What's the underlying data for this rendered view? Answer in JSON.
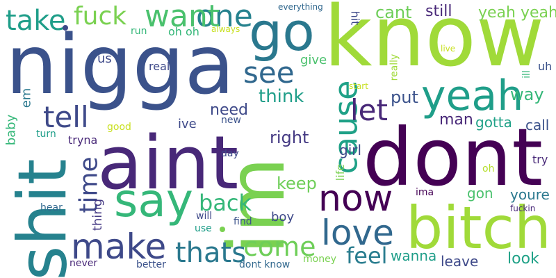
{
  "word_cloud": {
    "words": [
      {
        "text": "nigga",
        "color": "#3b528b"
      },
      {
        "text": "know",
        "color": "#a0da39"
      },
      {
        "text": "dont",
        "color": "#440154"
      },
      {
        "text": "aint",
        "color": "#482878"
      },
      {
        "text": "im",
        "color": "#7ad151"
      },
      {
        "text": "shit",
        "color": "#26828e"
      },
      {
        "text": "bitch",
        "color": "#a0da39"
      },
      {
        "text": "go",
        "color": "#2a788e"
      },
      {
        "text": "say",
        "color": "#35b779"
      },
      {
        "text": "yeah",
        "color": "#1f9e89"
      },
      {
        "text": "make",
        "color": "#3e4989"
      },
      {
        "text": "love",
        "color": "#31688e"
      },
      {
        "text": "now",
        "color": "#440154"
      },
      {
        "text": "cause",
        "color": "#1fa187"
      },
      {
        "text": "one",
        "color": "#26828e"
      },
      {
        "text": "want",
        "color": "#4ac16d"
      },
      {
        "text": "see",
        "color": "#31688e"
      },
      {
        "text": "tell",
        "color": "#3e4989"
      },
      {
        "text": "let",
        "color": "#482878"
      },
      {
        "text": "thats",
        "color": "#2a788e"
      },
      {
        "text": "come",
        "color": "#6ece58"
      },
      {
        "text": "time",
        "color": "#3e4989"
      },
      {
        "text": "take",
        "color": "#1f9e89"
      },
      {
        "text": "fuck",
        "color": "#7ad151"
      },
      {
        "text": "back",
        "color": "#35b779"
      },
      {
        "text": "feel",
        "color": "#287c8e"
      },
      {
        "text": "yeah yeah",
        "color": "#7ad151"
      },
      {
        "text": "think",
        "color": "#1f9e89"
      },
      {
        "text": "need",
        "color": "#3e4989"
      },
      {
        "text": "cant",
        "color": "#6ece58"
      },
      {
        "text": "still",
        "color": "#482878"
      },
      {
        "text": "right",
        "color": "#443983"
      },
      {
        "text": "put",
        "color": "#3b528b"
      },
      {
        "text": "way",
        "color": "#35b779"
      },
      {
        "text": "man",
        "color": "#482878"
      },
      {
        "text": "gotta",
        "color": "#1fa187"
      },
      {
        "text": "girl",
        "color": "#3e4989"
      },
      {
        "text": "keep",
        "color": "#6ece58"
      },
      {
        "text": "gon",
        "color": "#4ac16d"
      },
      {
        "text": "youre",
        "color": "#2a788e"
      },
      {
        "text": "look",
        "color": "#1fa187"
      },
      {
        "text": "wanna",
        "color": "#1f9e89"
      },
      {
        "text": "leave",
        "color": "#3e4989"
      },
      {
        "text": "call",
        "color": "#3b528b"
      },
      {
        "text": "try",
        "color": "#482878"
      },
      {
        "text": "boy",
        "color": "#3e4989"
      },
      {
        "text": "thing",
        "color": "#443983"
      },
      {
        "text": "ive",
        "color": "#3e4989"
      },
      {
        "text": "tryna",
        "color": "#482878"
      },
      {
        "text": "baby",
        "color": "#35b779"
      },
      {
        "text": "em",
        "color": "#2a788e"
      },
      {
        "text": "us",
        "color": "#3e4989"
      },
      {
        "text": "real",
        "color": "#3e4989"
      },
      {
        "text": "give",
        "color": "#4ac16d"
      },
      {
        "text": "really",
        "color": "#a0da39"
      },
      {
        "text": "hit",
        "color": "#3e4989"
      },
      {
        "text": "uh",
        "color": "#3b528b"
      },
      {
        "text": "ill",
        "color": "#35b779"
      },
      {
        "text": "life",
        "color": "#7ad151"
      },
      {
        "text": "oh",
        "color": "#b5de2b"
      },
      {
        "text": "turn",
        "color": "#1f9e89"
      },
      {
        "text": "hear",
        "color": "#31688e"
      },
      {
        "text": "will",
        "color": "#3e4989"
      },
      {
        "text": "use",
        "color": "#1f9e89"
      },
      {
        "text": "find",
        "color": "#3b528b"
      },
      {
        "text": "day",
        "color": "#3e4989"
      },
      {
        "text": "new",
        "color": "#3b528b"
      },
      {
        "text": "good",
        "color": "#c8e020"
      },
      {
        "text": "run",
        "color": "#35b779"
      },
      {
        "text": "oh oh",
        "color": "#35b779"
      },
      {
        "text": "always",
        "color": "#c8e020"
      },
      {
        "text": "everything",
        "color": "#31688e"
      },
      {
        "text": "start",
        "color": "#c8e020"
      },
      {
        "text": "live",
        "color": "#c8e020"
      },
      {
        "text": "never",
        "color": "#482878"
      },
      {
        "text": "better",
        "color": "#3b528b"
      },
      {
        "text": "dont know",
        "color": "#31688e"
      },
      {
        "text": "money",
        "color": "#7ad151"
      },
      {
        "text": "ima",
        "color": "#440154"
      },
      {
        "text": "fuckin",
        "color": "#482878"
      }
    ]
  }
}
